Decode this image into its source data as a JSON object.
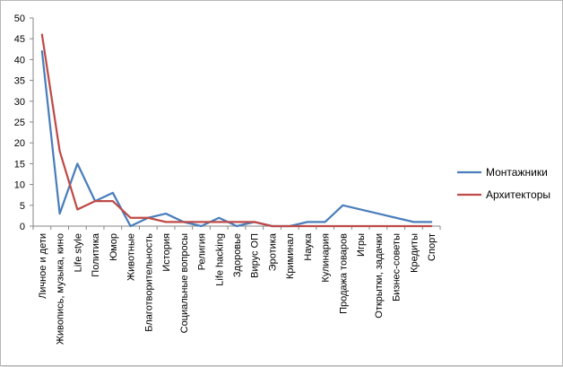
{
  "chart_data": {
    "type": "line",
    "title": "",
    "xlabel": "",
    "ylabel": "",
    "ylim": [
      0,
      50
    ],
    "yticks": [
      0,
      5,
      10,
      15,
      20,
      25,
      30,
      35,
      40,
      45,
      50
    ],
    "grid": false,
    "legend_position": "right",
    "categories": [
      "Личное и дети",
      "Живопись, музыка, кино",
      "Life style",
      "Политика",
      "Юмор",
      "Животные",
      "Благотворительность",
      "История",
      "Социальные вопросы",
      "Религия",
      "Life hacking",
      "Здоровье",
      "Вирус ОП",
      "Эротика",
      "Криминал",
      "Наука",
      "Кулинария",
      "Продажа товаров",
      "Игры",
      "Открытки, задачки",
      "Бизнес-советы",
      "Кредиты",
      "Спорт"
    ],
    "series": [
      {
        "name": "Монтажники",
        "color": "#4a7ebb",
        "values": [
          42,
          3,
          15,
          6,
          8,
          0,
          2,
          3,
          1,
          0,
          2,
          0,
          1,
          0,
          0,
          1,
          1,
          5,
          4,
          3,
          2,
          1,
          1
        ]
      },
      {
        "name": "Архитекторы",
        "color": "#be4b48",
        "values": [
          46,
          18,
          4,
          6,
          6,
          2,
          2,
          1,
          1,
          1,
          1,
          1,
          1,
          0,
          0,
          0,
          0,
          0,
          0,
          0,
          0,
          0,
          0
        ]
      }
    ]
  }
}
